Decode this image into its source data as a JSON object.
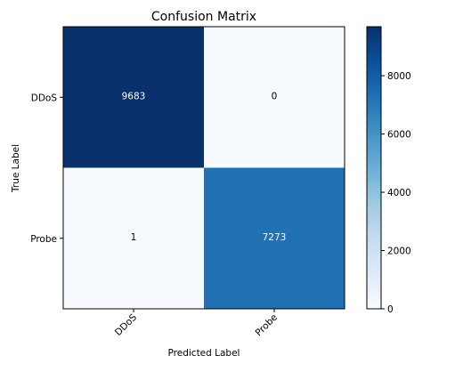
{
  "chart_data": {
    "type": "heatmap",
    "title": "Confusion Matrix",
    "xlabel": "Predicted Label",
    "ylabel": "True Label",
    "x_categories": [
      "DDoS",
      "Probe"
    ],
    "y_categories": [
      "DDoS",
      "Probe"
    ],
    "values": [
      [
        9683,
        0
      ],
      [
        1,
        7273
      ]
    ],
    "value_labels": [
      [
        "9683",
        "0"
      ],
      [
        "1",
        "7273"
      ]
    ],
    "colormap": "Blues",
    "color_range": [
      0,
      9683
    ],
    "colorbar_ticks": [
      0,
      2000,
      4000,
      6000,
      8000
    ],
    "colorbar_tick_labels": [
      "0",
      "2000",
      "4000",
      "6000",
      "8000"
    ],
    "text_color_light": "#ffffff",
    "text_color_dark": "#000000"
  }
}
